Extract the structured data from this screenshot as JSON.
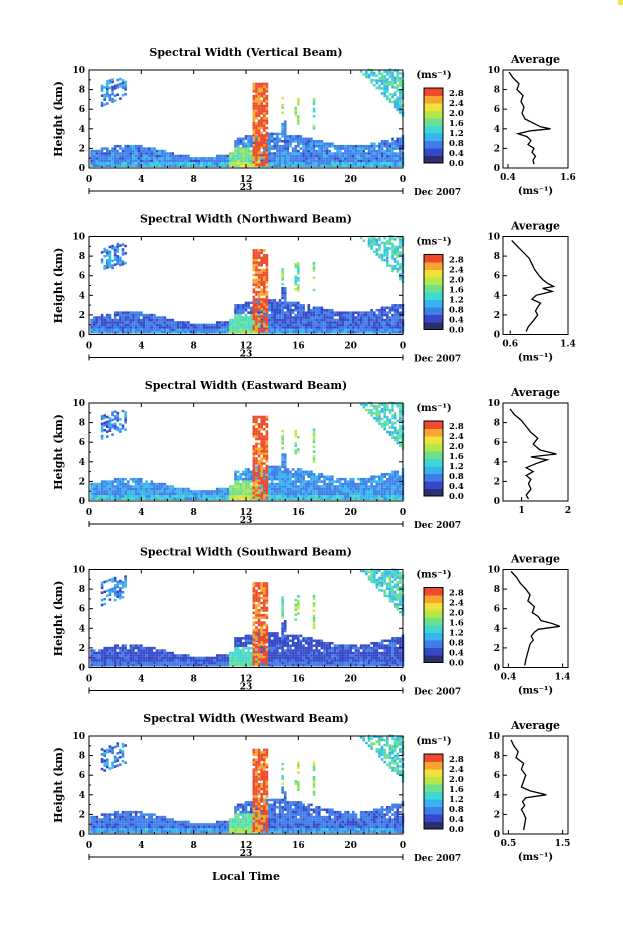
{
  "chart_data": {
    "type": "heatmap",
    "x_range": [
      0,
      24
    ],
    "y_range": [
      0,
      10
    ],
    "x_ticks": [
      "0",
      "4",
      "8",
      "12",
      "16",
      "20",
      "0"
    ],
    "y_ticks": [
      "0",
      "2",
      "4",
      "6",
      "8",
      "10"
    ],
    "ylabel": "Height (km)",
    "date_day": "23",
    "date_month": "Dec 2007",
    "xlabel": "Local Time",
    "colorbar": {
      "unit": "(ms⁻¹)",
      "ticks": [
        "0.0",
        "0.4",
        "0.8",
        "1.2",
        "1.6",
        "2.0",
        "2.4",
        "2.8"
      ],
      "range": [
        0,
        3.0
      ],
      "colors": [
        "#2b2f6e",
        "#3648c8",
        "#3f7ee8",
        "#37b4ef",
        "#3fd8d0",
        "#6fe08a",
        "#b5e64a",
        "#f0e23c",
        "#f7a52f",
        "#ee4a2c"
      ]
    },
    "panels": [
      {
        "title": "Spectral Width (Vertical Beam)",
        "avg_title": "Average",
        "avg_ticks": [
          "0.4",
          "1.6"
        ],
        "avg_xlim": [
          0.3,
          1.6
        ],
        "avg_xlabel": "(ms⁻¹)",
        "base": 0.9,
        "cells_above": "low"
      },
      {
        "title": "Spectral Width (Northward Beam)",
        "avg_title": "Average",
        "avg_ticks": [
          "0.6",
          "1.4"
        ],
        "avg_xlim": [
          0.5,
          1.4
        ],
        "avg_xlabel": "(ms⁻¹)",
        "base": 0.7,
        "cells_above": "mid"
      },
      {
        "title": "Spectral Width (Eastward Beam)",
        "avg_title": "Average",
        "avg_ticks": [
          "1",
          "2"
        ],
        "avg_xlim": [
          0.6,
          2.0
        ],
        "avg_xlabel": "",
        "base": 1.0,
        "cells_above": "mid"
      },
      {
        "title": "Spectral Width (Southward Beam)",
        "avg_title": "Average",
        "avg_ticks": [
          "0.4",
          "1.4"
        ],
        "avg_xlim": [
          0.3,
          1.5
        ],
        "avg_xlabel": "(ms⁻¹)",
        "base": 0.6,
        "cells_above": "low"
      },
      {
        "title": "Spectral Width (Westward Beam)",
        "avg_title": "Average",
        "avg_ticks": [
          "0.5",
          "1.5"
        ],
        "avg_xlim": [
          0.4,
          1.6
        ],
        "avg_xlabel": "(ms⁻¹)",
        "base": 0.8,
        "cells_above": "low"
      }
    ],
    "average_profiles": [
      [
        [
          9.8,
          0.42
        ],
        [
          9.2,
          0.5
        ],
        [
          8.6,
          0.62
        ],
        [
          8.0,
          0.58
        ],
        [
          7.4,
          0.7
        ],
        [
          6.8,
          0.66
        ],
        [
          6.2,
          0.72
        ],
        [
          5.6,
          0.68
        ],
        [
          5.0,
          0.74
        ],
        [
          4.6,
          0.9
        ],
        [
          4.2,
          1.05
        ],
        [
          4.0,
          1.25
        ],
        [
          3.8,
          0.85
        ],
        [
          3.5,
          0.6
        ],
        [
          3.2,
          0.78
        ],
        [
          2.8,
          0.86
        ],
        [
          2.4,
          0.8
        ],
        [
          2.0,
          0.92
        ],
        [
          1.6,
          0.88
        ],
        [
          1.2,
          0.95
        ],
        [
          0.8,
          0.9
        ],
        [
          0.4,
          0.92
        ]
      ],
      [
        [
          9.6,
          0.62
        ],
        [
          9.0,
          0.7
        ],
        [
          8.4,
          0.78
        ],
        [
          7.8,
          0.86
        ],
        [
          7.2,
          0.9
        ],
        [
          6.6,
          0.94
        ],
        [
          6.0,
          1.0
        ],
        [
          5.6,
          1.05
        ],
        [
          5.2,
          1.12
        ],
        [
          4.9,
          1.2
        ],
        [
          4.7,
          1.05
        ],
        [
          4.4,
          1.18
        ],
        [
          4.0,
          0.96
        ],
        [
          3.6,
          0.9
        ],
        [
          3.2,
          1.02
        ],
        [
          2.8,
          0.98
        ],
        [
          2.4,
          0.95
        ],
        [
          2.0,
          0.98
        ],
        [
          1.4,
          0.92
        ],
        [
          0.8,
          0.85
        ],
        [
          0.3,
          0.82
        ]
      ],
      [
        [
          9.4,
          0.75
        ],
        [
          8.8,
          0.85
        ],
        [
          8.2,
          1.0
        ],
        [
          7.6,
          1.1
        ],
        [
          7.0,
          1.2
        ],
        [
          6.4,
          1.35
        ],
        [
          5.8,
          1.25
        ],
        [
          5.2,
          1.4
        ],
        [
          4.8,
          1.75
        ],
        [
          4.5,
          1.2
        ],
        [
          4.2,
          1.55
        ],
        [
          3.8,
          1.3
        ],
        [
          3.4,
          1.1
        ],
        [
          3.0,
          1.25
        ],
        [
          2.6,
          1.1
        ],
        [
          2.2,
          1.2
        ],
        [
          1.8,
          1.15
        ],
        [
          1.2,
          1.2
        ],
        [
          0.6,
          1.1
        ],
        [
          0.2,
          1.15
        ]
      ],
      [
        [
          9.8,
          0.45
        ],
        [
          9.2,
          0.55
        ],
        [
          8.6,
          0.62
        ],
        [
          8.0,
          0.72
        ],
        [
          7.4,
          0.8
        ],
        [
          6.8,
          0.76
        ],
        [
          6.2,
          0.88
        ],
        [
          5.6,
          0.84
        ],
        [
          5.2,
          0.95
        ],
        [
          4.8,
          1.0
        ],
        [
          4.5,
          1.2
        ],
        [
          4.2,
          1.35
        ],
        [
          3.9,
          0.95
        ],
        [
          3.6,
          0.88
        ],
        [
          3.2,
          0.82
        ],
        [
          2.8,
          0.86
        ],
        [
          2.4,
          0.8
        ],
        [
          2.0,
          0.78
        ],
        [
          1.4,
          0.75
        ],
        [
          0.8,
          0.72
        ],
        [
          0.2,
          0.7
        ]
      ],
      [
        [
          9.6,
          0.55
        ],
        [
          9.0,
          0.6
        ],
        [
          8.4,
          0.68
        ],
        [
          7.8,
          0.64
        ],
        [
          7.2,
          0.78
        ],
        [
          6.6,
          0.74
        ],
        [
          6.0,
          0.82
        ],
        [
          5.4,
          0.78
        ],
        [
          4.8,
          0.74
        ],
        [
          4.4,
          0.9
        ],
        [
          4.0,
          1.2
        ],
        [
          3.7,
          0.82
        ],
        [
          3.3,
          0.76
        ],
        [
          2.9,
          0.8
        ],
        [
          2.5,
          0.74
        ],
        [
          2.1,
          0.78
        ],
        [
          1.6,
          0.82
        ],
        [
          1.0,
          0.8
        ],
        [
          0.4,
          0.78
        ]
      ]
    ]
  }
}
